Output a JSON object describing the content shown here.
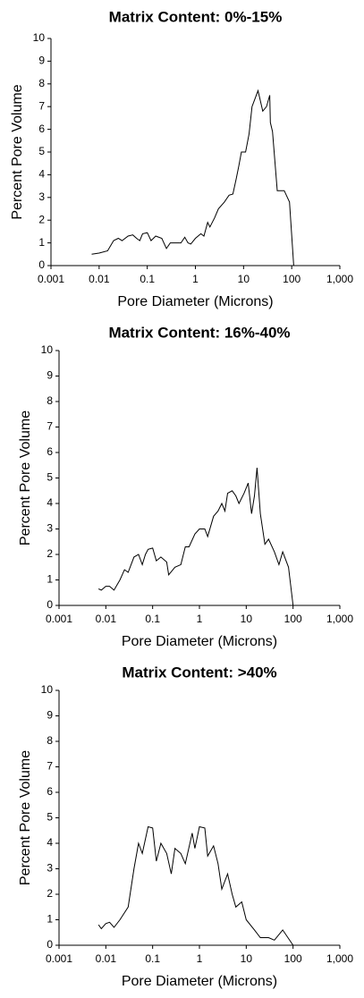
{
  "chart_data": [
    {
      "type": "line",
      "title": "Matrix Content: 0%-15%",
      "x_label": "Pore Diameter (Microns)",
      "y_label": "Percent Pore Volume",
      "x_scale": "log",
      "color": "#000000",
      "xlim": [
        0.001,
        1000
      ],
      "ylim": [
        0,
        10
      ],
      "xticks": [
        0.001,
        0.01,
        0.1,
        1,
        10,
        100,
        {
          "value": 1000,
          "label": "1,000"
        }
      ],
      "yticks": [
        0,
        1,
        2,
        3,
        4,
        5,
        6,
        7,
        8,
        9,
        10
      ],
      "x": [
        0.007,
        0.01,
        0.015,
        0.02,
        0.025,
        0.03,
        0.04,
        0.05,
        0.06,
        0.07,
        0.08,
        0.1,
        0.12,
        0.15,
        0.2,
        0.25,
        0.3,
        0.4,
        0.5,
        0.6,
        0.7,
        0.8,
        1,
        1.3,
        1.5,
        1.8,
        2,
        2.5,
        3,
        4,
        5,
        6,
        7,
        8,
        9,
        11,
        13,
        15,
        20,
        25,
        30,
        35,
        36,
        40,
        50,
        60,
        70,
        90,
        110
      ],
      "values": [
        0.5,
        0.55,
        0.65,
        1.1,
        1.2,
        1.1,
        1.3,
        1.35,
        1.2,
        1.1,
        1.4,
        1.45,
        1.1,
        1.3,
        1.2,
        0.75,
        1.0,
        1.0,
        1.0,
        1.25,
        1.0,
        0.95,
        1.2,
        1.4,
        1.3,
        1.9,
        1.7,
        2.1,
        2.5,
        2.8,
        3.1,
        3.15,
        3.8,
        4.4,
        5.0,
        5.0,
        5.8,
        7.0,
        7.7,
        6.8,
        7.0,
        7.5,
        6.3,
        5.9,
        3.3,
        3.3,
        3.3,
        2.8,
        0
      ]
    },
    {
      "type": "line",
      "title": "Matrix Content: 16%-40%",
      "x_label": "Pore Diameter (Microns)",
      "y_label": "Percent Pore Volume",
      "x_scale": "log",
      "color": "#000000",
      "xlim": [
        0.001,
        1000
      ],
      "ylim": [
        0,
        10
      ],
      "xticks": [
        0.001,
        0.01,
        0.1,
        1,
        10,
        100,
        {
          "value": 1000,
          "label": "1,000"
        }
      ],
      "yticks": [
        0,
        1,
        2,
        3,
        4,
        5,
        6,
        7,
        8,
        9,
        10
      ],
      "x": [
        0.007,
        0.008,
        0.01,
        0.012,
        0.015,
        0.02,
        0.025,
        0.03,
        0.04,
        0.05,
        0.06,
        0.07,
        0.08,
        0.1,
        0.12,
        0.15,
        0.2,
        0.22,
        0.3,
        0.4,
        0.5,
        0.6,
        0.8,
        1,
        1.3,
        1.5,
        2,
        2.5,
        3,
        3.5,
        4,
        5,
        6,
        7,
        9,
        11,
        13,
        15,
        17,
        20,
        25,
        30,
        40,
        50,
        60,
        80,
        100
      ],
      "values": [
        0.65,
        0.6,
        0.75,
        0.75,
        0.6,
        1.0,
        1.4,
        1.3,
        1.9,
        2.0,
        1.6,
        2.0,
        2.2,
        2.25,
        1.75,
        1.9,
        1.7,
        1.2,
        1.5,
        1.6,
        2.3,
        2.3,
        2.8,
        3.0,
        3.0,
        2.7,
        3.5,
        3.7,
        4.0,
        3.7,
        4.4,
        4.5,
        4.3,
        4.0,
        4.4,
        4.8,
        3.6,
        4.3,
        5.4,
        3.6,
        2.4,
        2.6,
        2.1,
        1.6,
        2.1,
        1.5,
        0
      ]
    },
    {
      "type": "line",
      "title": "Matrix Content: >40%",
      "x_label": "Pore Diameter (Microns)",
      "y_label": "Percent Pore Volume",
      "x_scale": "log",
      "color": "#000000",
      "xlim": [
        0.001,
        1000
      ],
      "ylim": [
        0,
        10
      ],
      "xticks": [
        0.001,
        0.01,
        0.1,
        1,
        10,
        100,
        {
          "value": 1000,
          "label": "1,000"
        }
      ],
      "yticks": [
        0,
        1,
        2,
        3,
        4,
        5,
        6,
        7,
        8,
        9,
        10
      ],
      "x": [
        0.007,
        0.008,
        0.01,
        0.012,
        0.015,
        0.02,
        0.03,
        0.04,
        0.05,
        0.06,
        0.08,
        0.1,
        0.12,
        0.15,
        0.2,
        0.25,
        0.3,
        0.4,
        0.5,
        0.7,
        0.8,
        1,
        1.3,
        1.5,
        2,
        2.5,
        3,
        4,
        5,
        6,
        8,
        10,
        15,
        20,
        30,
        40,
        60,
        100
      ],
      "values": [
        0.8,
        0.65,
        0.85,
        0.9,
        0.7,
        1.0,
        1.5,
        3.0,
        4.0,
        3.6,
        4.65,
        4.6,
        3.3,
        4.0,
        3.6,
        2.8,
        3.8,
        3.6,
        3.2,
        4.4,
        3.8,
        4.65,
        4.6,
        3.5,
        3.9,
        3.2,
        2.2,
        2.8,
        2.0,
        1.5,
        1.7,
        1.0,
        0.6,
        0.3,
        0.3,
        0.2,
        0.6,
        0
      ]
    }
  ]
}
